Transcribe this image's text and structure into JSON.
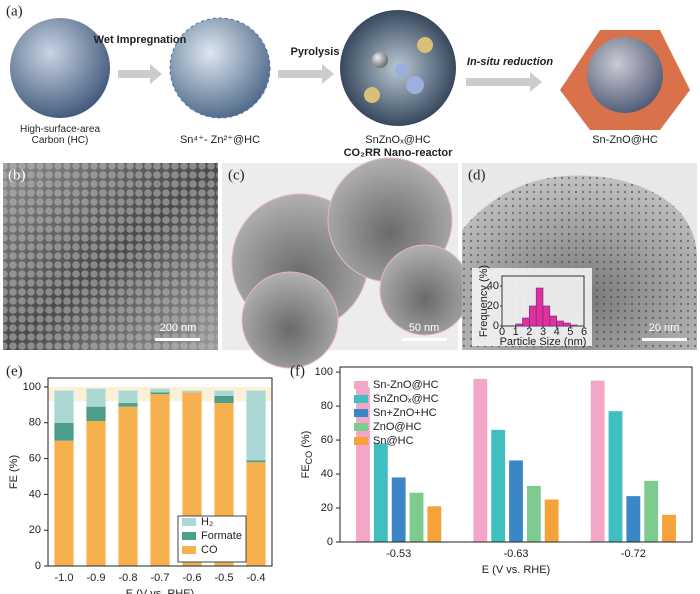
{
  "schematic": {
    "label": "(a)",
    "steps": [
      "Wet Impregnation",
      "Pyrolysis",
      "In-situ reduction"
    ],
    "stages": [
      "High-surface-area Carbon (HC)",
      "Sn⁴⁺- Zn²⁺@HC",
      "SnZnOₓ@HC",
      "Sn-ZnO@HC"
    ],
    "reactor": "CO₂RR Nano-reactor"
  },
  "micrographs": [
    {
      "label": "(b)",
      "scale": "200 nm"
    },
    {
      "label": "(c)",
      "scale": "50 nm"
    },
    {
      "label": "(d)",
      "scale": "20 nm"
    }
  ],
  "inset": {
    "type": "histogram",
    "x_label": "Particle Size (nm)",
    "y_label": "Frequency (%)",
    "bins": [
      1,
      1.5,
      2,
      2.5,
      3,
      3.5,
      4,
      4.5,
      5,
      5.5
    ],
    "values": [
      2,
      8,
      20,
      38,
      20,
      10,
      5,
      3,
      1
    ],
    "color": "#e0309a",
    "xlim": [
      0,
      6
    ],
    "xticks": [
      0,
      1,
      2,
      3,
      4,
      5,
      6
    ],
    "ylim": [
      0,
      50
    ],
    "yticks": [
      0,
      20,
      40
    ]
  },
  "chart_data": [
    {
      "type": "stacked-bar",
      "label": "(e)",
      "y_label": "FE (%)",
      "x_label": "E (V vs. RHE)",
      "categories": [
        "-1.0",
        "-0.9",
        "-0.8",
        "-0.7",
        "-0.6",
        "-0.5",
        "-0.4"
      ],
      "series": [
        {
          "name": "CO",
          "color": "#f6b04d",
          "values": [
            70,
            81,
            89,
            96,
            97,
            91,
            58
          ]
        },
        {
          "name": "Formate",
          "color": "#4c9e8a",
          "values": [
            10,
            8,
            2,
            1,
            0,
            4,
            1
          ]
        },
        {
          "name": "H₂",
          "color": "#a9d8d5",
          "values": [
            18,
            10,
            7,
            2,
            1,
            3,
            39
          ]
        }
      ],
      "band": [
        92,
        100
      ],
      "ylim": [
        0,
        105
      ],
      "yticks": [
        0,
        20,
        40,
        60,
        80,
        100
      ],
      "legend": "lower-right"
    },
    {
      "type": "grouped-bar",
      "label": "(f)",
      "y_label": {
        "main": "FE",
        "sub": "CO",
        "unit": " (%)"
      },
      "x_label": "E (V vs. RHE)",
      "categories": [
        "-0.53",
        "-0.63",
        "-0.72"
      ],
      "series": [
        {
          "name": "Sn-ZnO@HC",
          "color": "#f4a6c8",
          "values": [
            91,
            96,
            95
          ]
        },
        {
          "name": "SnZnOₓ@HC",
          "color": "#3fbfbf",
          "values": [
            58,
            66,
            77
          ]
        },
        {
          "name": "Sn+ZnO+HC",
          "color": "#3b86c6",
          "values": [
            38,
            48,
            27
          ]
        },
        {
          "name": "ZnO@HC",
          "color": "#7ecb8f",
          "values": [
            29,
            33,
            36
          ]
        },
        {
          "name": "Sn@HC",
          "color": "#f6a23a",
          "values": [
            21,
            25,
            16
          ]
        }
      ],
      "ylim": [
        0,
        103
      ],
      "yticks": [
        0,
        20,
        40,
        60,
        80,
        100
      ],
      "legend": "upper-left"
    }
  ]
}
